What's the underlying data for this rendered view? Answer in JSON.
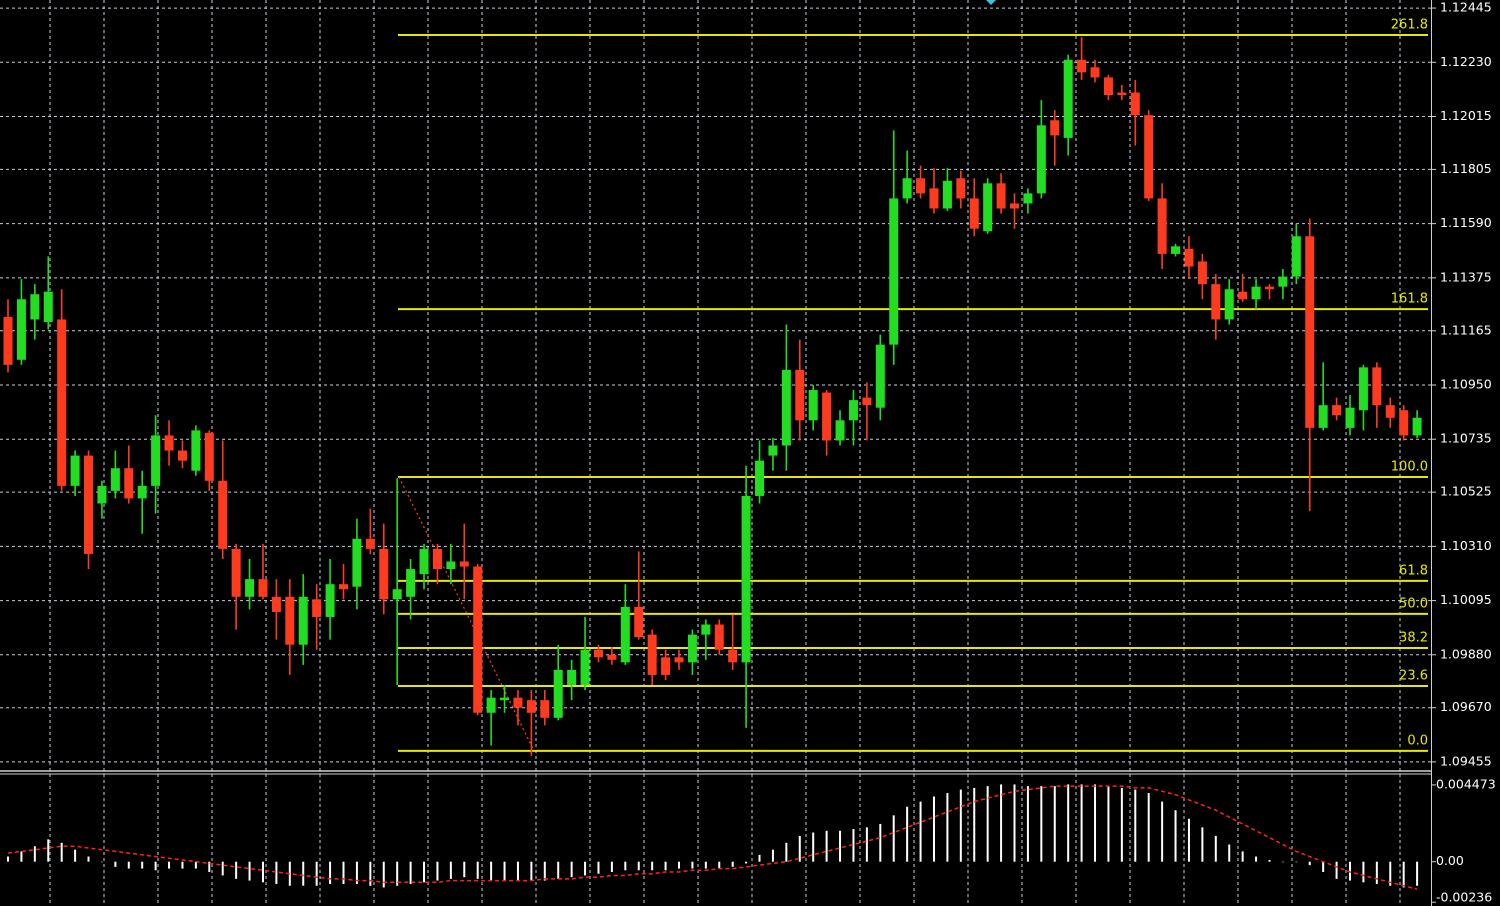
{
  "chart_data": [
    {
      "type": "candlestick",
      "up_color": "#22dd22",
      "down_color": "#ff3b1f",
      "grid": true,
      "ylim": [
        1.09423,
        1.12477
      ],
      "yticks": [
        1.12445,
        {
          "value": 1.1223,
          "label": "1.12230"
        },
        1.12015,
        1.11805,
        {
          "value": 1.1159,
          "label": "1.11590"
        },
        1.11375,
        1.11165,
        {
          "value": 1.1095,
          "label": "1.10950"
        },
        1.10735,
        1.10525,
        {
          "value": 1.1031,
          "label": "1.10310"
        },
        1.10095,
        {
          "value": 1.0988,
          "label": "1.09880"
        },
        {
          "value": 1.0967,
          "label": "1.09670"
        },
        1.09455
      ],
      "levels_color": "#e8e800",
      "levels": [
        {
          "label": "261.8",
          "value": 1.12338
        },
        {
          "label": "161.8",
          "value": 1.11251
        },
        {
          "label": "100.0",
          "value": 1.10585
        },
        {
          "label": "61.8",
          "value": 1.10173
        },
        {
          "label": "50.0",
          "value": 1.10042
        },
        {
          "label": "38.2",
          "value": 1.09907
        },
        {
          "label": "23.6",
          "value": 1.09756
        },
        {
          "label": "0.0",
          "value": 1.09499
        }
      ],
      "open": [
        1.1122,
        1.1105,
        1.1121,
        1.112,
        1.1121,
        1.1055,
        1.1067,
        1.1048,
        1.1053,
        1.1062,
        1.105,
        1.1055,
        1.1075,
        1.1069,
        1.1061,
        1.1076,
        1.1057,
        1.103,
        1.1011,
        1.1018,
        1.1011,
        1.1011,
        1.0992,
        1.101,
        1.1003,
        1.1016,
        1.1015,
        1.1034,
        1.103,
        1.101,
        1.1011,
        1.102,
        1.103,
        1.1022,
        1.1025,
        1.1023,
        1.0965,
        1.097,
        1.0971,
        1.097,
        1.097,
        1.0963,
        1.0976,
        1.0976,
        1.099,
        1.0988,
        1.0985,
        1.1007,
        1.0996,
        1.0987,
        1.0987,
        1.0985,
        1.0996,
        1.1,
        1.099,
        1.0985,
        1.1051,
        1.1067,
        1.1071,
        1.1101,
        1.1081,
        1.1092,
        1.1073,
        1.1081,
        1.109,
        1.1086,
        1.1111,
        1.1169,
        1.1177,
        1.1173,
        1.1165,
        1.1177,
        1.1169,
        1.1156,
        1.1175,
        1.1167,
        1.1167,
        1.1171,
        1.12,
        1.1193,
        1.1224,
        1.1221,
        1.1217,
        1.1211,
        1.1211,
        1.1202,
        1.1169,
        1.1147,
        1.1149,
        1.1144,
        1.1135,
        1.1121,
        1.1132,
        1.1129,
        1.1134,
        1.1134,
        1.1138,
        1.1154,
        1.1078,
        1.1087,
        1.1078,
        1.1085,
        1.1102,
        1.1087,
        1.1085,
        1.1075
      ],
      "high": [
        1.1129,
        1.1137,
        1.1135,
        1.1146,
        1.1133,
        1.1069,
        1.1069,
        1.1057,
        1.1069,
        1.1071,
        1.1061,
        1.1083,
        1.1081,
        1.1073,
        1.1079,
        1.1077,
        1.1073,
        1.1032,
        1.1026,
        1.1032,
        1.1018,
        1.1018,
        1.102,
        1.1016,
        1.1026,
        1.1024,
        1.1042,
        1.1046,
        1.104,
        1.1058,
        1.1026,
        1.1032,
        1.1032,
        1.1032,
        1.104,
        1.1024,
        1.0974,
        1.0976,
        1.0974,
        1.0974,
        1.0974,
        1.0992,
        1.0986,
        1.1003,
        1.0992,
        1.0991,
        1.1016,
        1.1029,
        1.0998,
        1.099,
        1.099,
        1.0998,
        1.1002,
        1.1002,
        1.1004,
        1.1063,
        1.1073,
        1.1074,
        1.1119,
        1.1113,
        1.1095,
        1.1093,
        1.1085,
        1.1093,
        1.1096,
        1.1115,
        1.1196,
        1.1188,
        1.1182,
        1.1181,
        1.1181,
        1.118,
        1.1177,
        1.1177,
        1.1179,
        1.1171,
        1.1173,
        1.1208,
        1.1204,
        1.1226,
        1.1233,
        1.1224,
        1.1218,
        1.1214,
        1.1216,
        1.1204,
        1.1175,
        1.1151,
        1.1154,
        1.1147,
        1.1139,
        1.1137,
        1.1139,
        1.1137,
        1.1135,
        1.1141,
        1.1159,
        1.1161,
        1.1104,
        1.109,
        1.1091,
        1.1103,
        1.1104,
        1.109,
        1.1087,
        1.1085
      ],
      "low": [
        1.11,
        1.1103,
        1.1113,
        1.1117,
        1.1053,
        1.1051,
        1.1022,
        1.1042,
        1.105,
        1.1048,
        1.1036,
        1.1044,
        1.1063,
        1.1062,
        1.1059,
        1.1053,
        1.1026,
        1.0998,
        1.1006,
        1.101,
        1.0994,
        1.098,
        1.0984,
        1.099,
        1.0994,
        1.101,
        1.1006,
        1.1028,
        1.1004,
        1.0976,
        1.1002,
        1.1014,
        1.1016,
        1.1016,
        1.101,
        1.0964,
        1.0952,
        1.0965,
        1.096,
        1.0948,
        1.096,
        1.0962,
        1.097,
        1.0974,
        1.0985,
        1.0984,
        1.0984,
        1.0994,
        1.0976,
        1.0978,
        1.0982,
        1.098,
        1.0986,
        1.0988,
        1.0982,
        1.0959,
        1.1048,
        1.1061,
        1.1061,
        1.1073,
        1.1077,
        1.1067,
        1.1071,
        1.1071,
        1.1073,
        1.1081,
        1.1103,
        1.1167,
        1.1169,
        1.1163,
        1.1164,
        1.1165,
        1.1154,
        1.1155,
        1.1163,
        1.1157,
        1.1163,
        1.1169,
        1.1182,
        1.1186,
        1.1216,
        1.1215,
        1.1208,
        1.1208,
        1.119,
        1.1168,
        1.1141,
        1.1146,
        1.1137,
        1.1129,
        1.1113,
        1.1119,
        1.1128,
        1.1125,
        1.1129,
        1.1129,
        1.1135,
        1.1045,
        1.1077,
        1.1081,
        1.1075,
        1.1077,
        1.1078,
        1.1078,
        1.1073,
        1.1074
      ],
      "close": [
        1.1103,
        1.1129,
        1.1131,
        1.1132,
        1.1055,
        1.1067,
        1.1028,
        1.1055,
        1.1062,
        1.105,
        1.1055,
        1.1075,
        1.1069,
        1.1065,
        1.1077,
        1.1057,
        1.103,
        1.1011,
        1.1018,
        1.1011,
        1.1005,
        1.0992,
        1.1011,
        1.1003,
        1.1016,
        1.1014,
        1.1034,
        1.103,
        1.101,
        1.1014,
        1.1022,
        1.103,
        1.1022,
        1.1025,
        1.1023,
        1.0965,
        1.0971,
        1.0971,
        1.0967,
        1.0965,
        1.0963,
        1.0982,
        1.0982,
        1.099,
        1.0987,
        1.0986,
        1.1007,
        1.0995,
        1.098,
        1.098,
        1.0985,
        1.0996,
        1.1,
        1.099,
        1.0985,
        1.1051,
        1.1065,
        1.1071,
        1.1101,
        1.1081,
        1.1093,
        1.1073,
        1.1081,
        1.1089,
        1.1087,
        1.1111,
        1.1169,
        1.1177,
        1.1171,
        1.1165,
        1.1176,
        1.1169,
        1.1157,
        1.1175,
        1.1165,
        1.1165,
        1.1171,
        1.1198,
        1.1194,
        1.1224,
        1.1219,
        1.1217,
        1.121,
        1.121,
        1.1202,
        1.1169,
        1.1147,
        1.115,
        1.1142,
        1.1135,
        1.1121,
        1.1133,
        1.1129,
        1.1134,
        1.1133,
        1.1138,
        1.1154,
        1.1078,
        1.1087,
        1.1083,
        1.1086,
        1.1102,
        1.1087,
        1.1082,
        1.1075,
        1.1082
      ]
    },
    {
      "type": "combo",
      "ylim": [
        -0.00258,
        0.00505
      ],
      "yticks": [
        0.004473,
        {
          "value": 0,
          "label": "0.00"
        },
        -0.00236
      ],
      "series": [
        {
          "type": "bar",
          "color": "#ffffff",
          "values": [
            0.0003,
            0.0006,
            0.0009,
            0.0013,
            0.0011,
            0.0007,
            0.0003,
            0.0,
            -0.0003,
            -0.0004,
            -0.0004,
            -0.0005,
            -0.0004,
            -0.0004,
            -0.0004,
            -0.0006,
            -0.0008,
            -0.001,
            -0.0011,
            -0.0012,
            -0.0013,
            -0.0014,
            -0.0014,
            -0.0014,
            -0.0013,
            -0.0013,
            -0.0013,
            -0.0014,
            -0.0015,
            -0.0014,
            -0.0013,
            -0.0012,
            -0.0011,
            -0.001,
            -0.0009,
            -0.001,
            -0.0011,
            -0.0011,
            -0.0011,
            -0.0011,
            -0.0011,
            -0.001,
            -0.0009,
            -0.0008,
            -0.0007,
            -0.0006,
            -0.0005,
            -0.0005,
            -0.0005,
            -0.0005,
            -0.0004,
            -0.0004,
            -0.0004,
            -0.0004,
            -0.0003,
            -0.0001,
            0.0004,
            0.0007,
            0.0011,
            0.0015,
            0.0017,
            0.0018,
            0.0018,
            0.0019,
            0.002,
            0.0022,
            0.0027,
            0.0032,
            0.0035,
            0.0038,
            0.004,
            0.0042,
            0.0043,
            0.0044,
            0.0045,
            0.0045,
            0.0044,
            0.0044,
            0.0044,
            0.0045,
            0.0045,
            0.0045,
            0.0044,
            0.0043,
            0.0042,
            0.004,
            0.0035,
            0.003,
            0.0025,
            0.002,
            0.0015,
            0.001,
            0.0006,
            0.0003,
            0.0001,
            0.0,
            0.0,
            -0.0002,
            -0.0006,
            -0.001,
            -0.0011,
            -0.0012,
            -0.0013,
            -0.0014,
            -0.0015,
            -0.0014
          ]
        },
        {
          "type": "line",
          "color": "#ff2020",
          "values": [
            0.0005,
            0.0006,
            0.0007,
            0.0008,
            0.0009,
            0.0009,
            0.0008,
            0.0007,
            0.0006,
            0.0005,
            0.0004,
            0.0003,
            0.0002,
            0.0001,
            0.0,
            -0.0001,
            -0.0002,
            -0.0003,
            -0.0004,
            -0.0005,
            -0.0006,
            -0.0007,
            -0.0008,
            -0.0009,
            -0.001,
            -0.001,
            -0.0011,
            -0.0011,
            -0.0012,
            -0.0012,
            -0.0012,
            -0.0012,
            -0.0012,
            -0.0011,
            -0.0011,
            -0.0011,
            -0.0011,
            -0.0011,
            -0.0011,
            -0.0011,
            -0.001,
            -0.001,
            -0.001,
            -0.0009,
            -0.0009,
            -0.0008,
            -0.0008,
            -0.0007,
            -0.0007,
            -0.0006,
            -0.0006,
            -0.0005,
            -0.0005,
            -0.0004,
            -0.0004,
            -0.0003,
            -0.0002,
            -0.0001,
            0.0,
            0.0002,
            0.0004,
            0.0006,
            0.0008,
            0.001,
            0.0012,
            0.0014,
            0.0017,
            0.002,
            0.0023,
            0.0026,
            0.0029,
            0.0032,
            0.0035,
            0.0037,
            0.0039,
            0.0041,
            0.0042,
            0.0043,
            0.0044,
            0.0044,
            0.0044,
            0.0044,
            0.0044,
            0.0044,
            0.0043,
            0.0043,
            0.0041,
            0.0039,
            0.0036,
            0.0033,
            0.003,
            0.0026,
            0.0022,
            0.0018,
            0.0014,
            0.001,
            0.0006,
            0.0003,
            0.0,
            -0.0003,
            -0.0006,
            -0.0008,
            -0.001,
            -0.0012,
            -0.0014,
            -0.0016
          ]
        }
      ]
    }
  ]
}
